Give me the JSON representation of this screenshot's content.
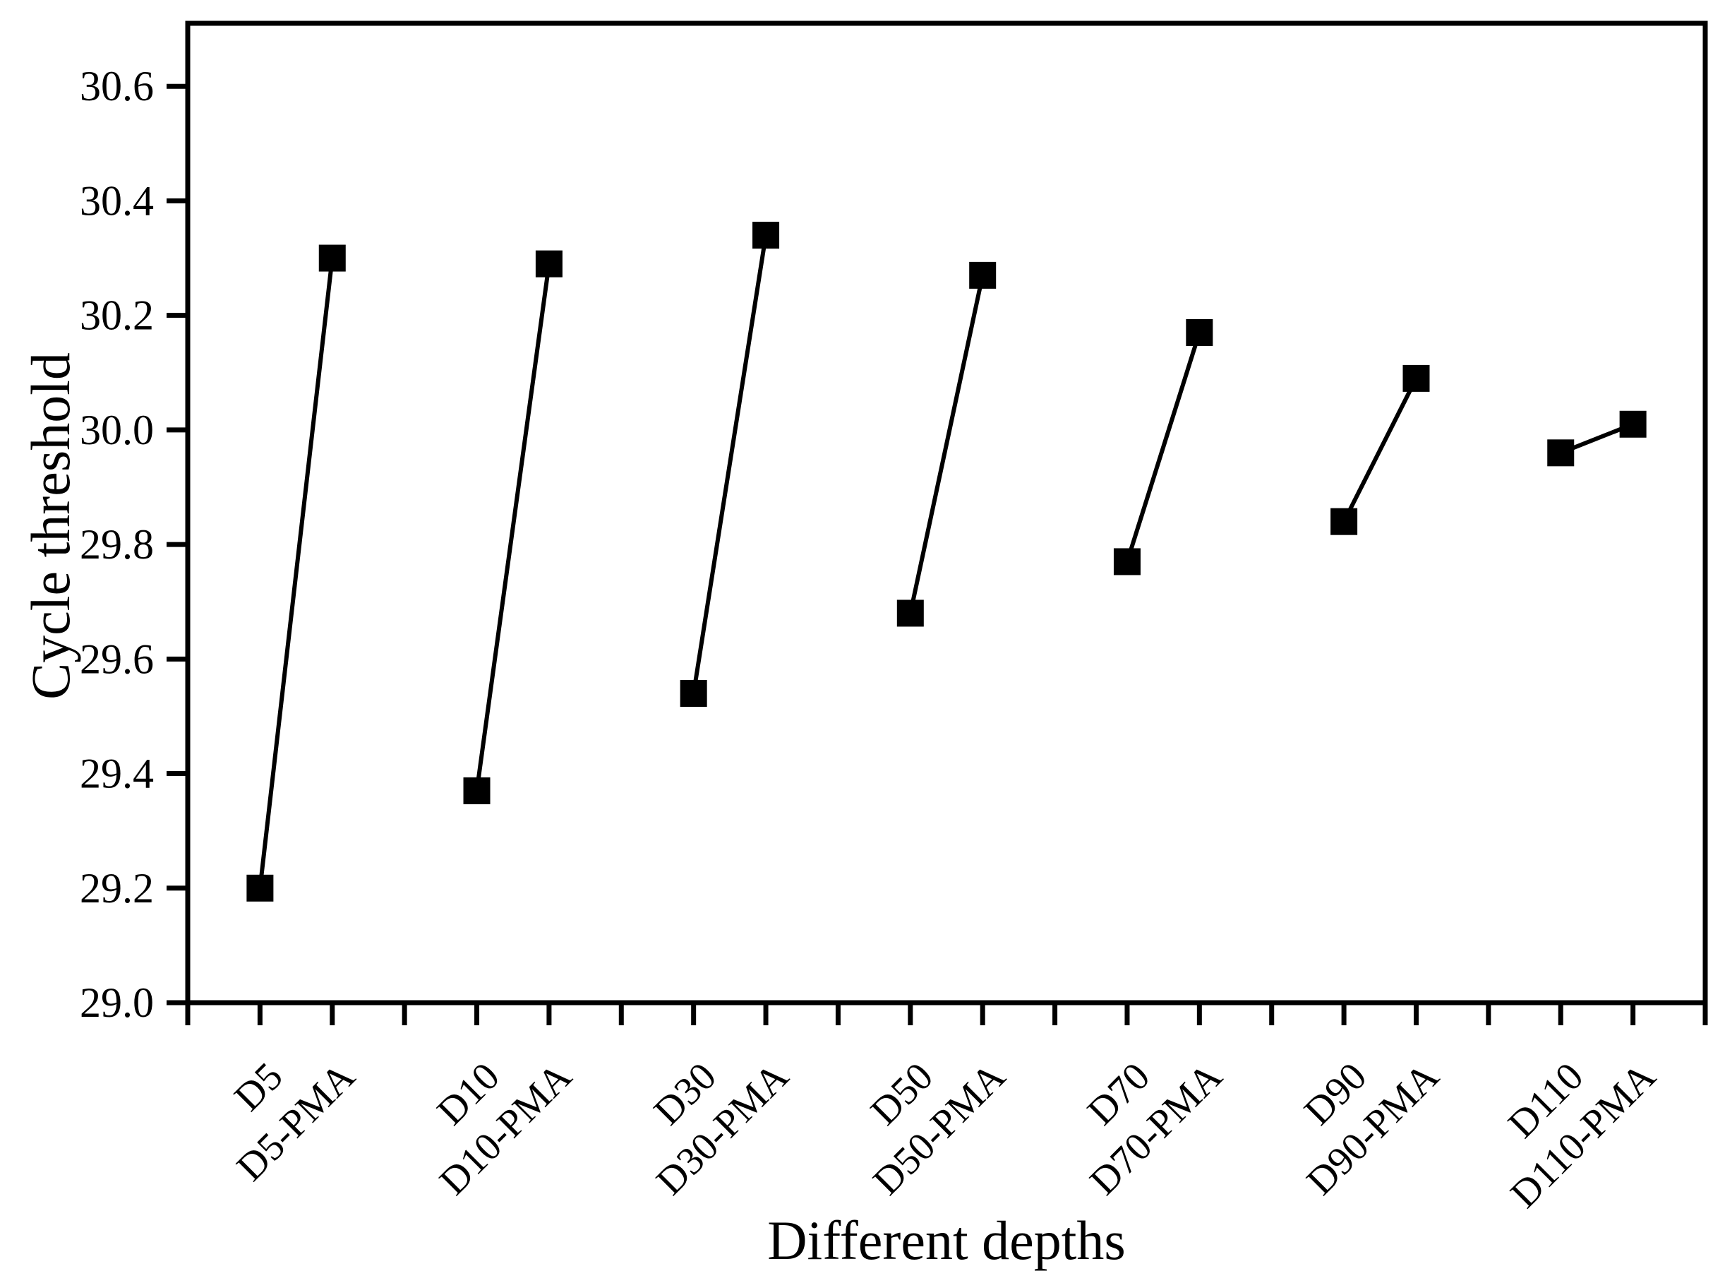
{
  "figure": {
    "title": "",
    "background_color": "#ffffff",
    "foreground_color": "#000000"
  },
  "chart_data": {
    "type": "line",
    "subtype": "paired-point-comparison",
    "title": "",
    "xlabel": "Different depths",
    "ylabel": "Cycle threshold",
    "ylim": [
      29.0,
      30.71
    ],
    "yticks": [
      "29.0",
      "29.2",
      "29.4",
      "29.6",
      "29.8",
      "30.0",
      "30.2",
      "30.4",
      "30.6"
    ],
    "grid": false,
    "legend": null,
    "marker": "filled-square",
    "line_color": "#000000",
    "marker_color": "#000000",
    "categories": [
      "D5",
      "D5-PMA",
      "D10",
      "D10-PMA",
      "D30",
      "D30-PMA",
      "D50",
      "D50-PMA",
      "D70",
      "D70-PMA",
      "D90",
      "D90-PMA",
      "D110",
      "D110-PMA"
    ],
    "values": [
      29.2,
      30.3,
      29.37,
      30.29,
      29.54,
      30.34,
      29.68,
      30.27,
      29.77,
      30.17,
      29.84,
      30.09,
      29.96,
      30.01
    ],
    "pairs": [
      {
        "labels": [
          "D5",
          "D5-PMA"
        ],
        "values": [
          29.2,
          30.3
        ]
      },
      {
        "labels": [
          "D10",
          "D10-PMA"
        ],
        "values": [
          29.37,
          30.29
        ]
      },
      {
        "labels": [
          "D30",
          "D30-PMA"
        ],
        "values": [
          29.54,
          30.34
        ]
      },
      {
        "labels": [
          "D50",
          "D50-PMA"
        ],
        "values": [
          29.68,
          30.27
        ]
      },
      {
        "labels": [
          "D70",
          "D70-PMA"
        ],
        "values": [
          29.77,
          30.17
        ]
      },
      {
        "labels": [
          "D90",
          "D90-PMA"
        ],
        "values": [
          29.84,
          30.09
        ]
      },
      {
        "labels": [
          "D110",
          "D110-PMA"
        ],
        "values": [
          29.96,
          30.01
        ]
      }
    ]
  }
}
